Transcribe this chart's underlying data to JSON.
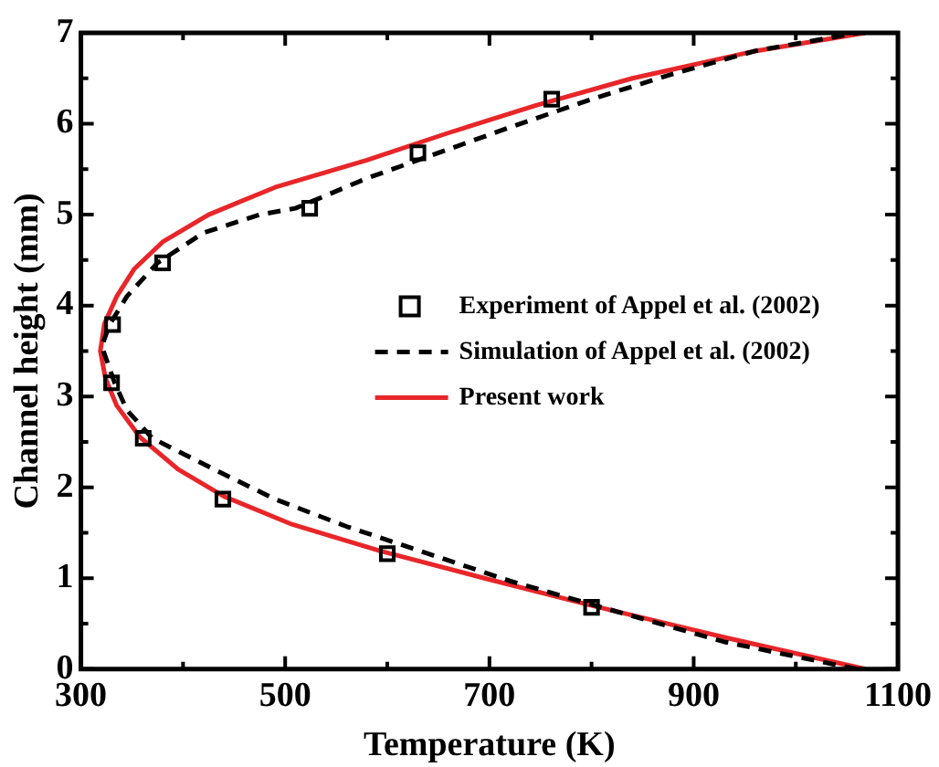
{
  "chart_data": {
    "type": "line",
    "xlabel": "Temperature (K)",
    "ylabel": "Channel height (mm)",
    "xlim": [
      300,
      1100
    ],
    "xticks": [
      300,
      {
        "value": 400,
        "label": null
      },
      500,
      {
        "value": 600,
        "label": null
      },
      700,
      {
        "value": 800,
        "label": null
      },
      900,
      {
        "value": 1000,
        "label": null
      },
      1100
    ],
    "ylim": [
      0,
      7
    ],
    "yticks": [
      0,
      {
        "value": 0.5,
        "label": null
      },
      1,
      {
        "value": 1.5,
        "label": null
      },
      2,
      {
        "value": 2.5,
        "label": null
      },
      3,
      {
        "value": 3.5,
        "label": null
      },
      4,
      {
        "value": 4.5,
        "label": null
      },
      5,
      {
        "value": 5.5,
        "label": null
      },
      6,
      {
        "value": 6.5,
        "label": null
      },
      7
    ],
    "grid": false,
    "legend": "right",
    "series": [
      {
        "name": "Experiment of Appel et al. (2002)",
        "type": "scatter",
        "marker": "square",
        "color": "#000000",
        "x": [
          761,
          630,
          524,
          380,
          331,
          330,
          361,
          439,
          600,
          800
        ],
        "values": [
          6.27,
          5.68,
          5.07,
          4.47,
          3.79,
          3.15,
          2.54,
          1.87,
          1.27,
          0.68
        ]
      },
      {
        "name": "Simulation of Appel et al. (2002)",
        "type": "line",
        "line_style": "dashed",
        "marker": "none",
        "color": "#000000",
        "x": [
          1060,
          930,
          810,
          720,
          640,
          560,
          490,
          430,
          370,
          345,
          333,
          322,
          322,
          328,
          345,
          375,
          420,
          475,
          510,
          580,
          650,
          725,
          800,
          880,
          960,
          1060
        ],
        "values": [
          0,
          0.3,
          0.68,
          0.97,
          1.27,
          1.57,
          1.87,
          2.2,
          2.54,
          2.85,
          3.15,
          3.5,
          3.6,
          3.79,
          4.1,
          4.47,
          4.8,
          5.0,
          5.07,
          5.4,
          5.68,
          5.98,
          6.27,
          6.55,
          6.8,
          7
        ]
      },
      {
        "name": "Present work",
        "type": "line",
        "line_style": "solid",
        "marker": "none",
        "color": "#e8262a",
        "x": [
          1068,
          930,
          800,
          695,
          593,
          505,
          440,
          395,
          358,
          335,
          324,
          319,
          323,
          335,
          352,
          380,
          425,
          490,
          580,
          660,
          745,
          840,
          960,
          1068
        ],
        "values": [
          0,
          0.35,
          0.7,
          1.0,
          1.3,
          1.6,
          1.9,
          2.2,
          2.55,
          2.9,
          3.2,
          3.5,
          3.8,
          4.1,
          4.4,
          4.7,
          5.0,
          5.3,
          5.6,
          5.9,
          6.2,
          6.5,
          6.8,
          7.0
        ]
      }
    ]
  }
}
